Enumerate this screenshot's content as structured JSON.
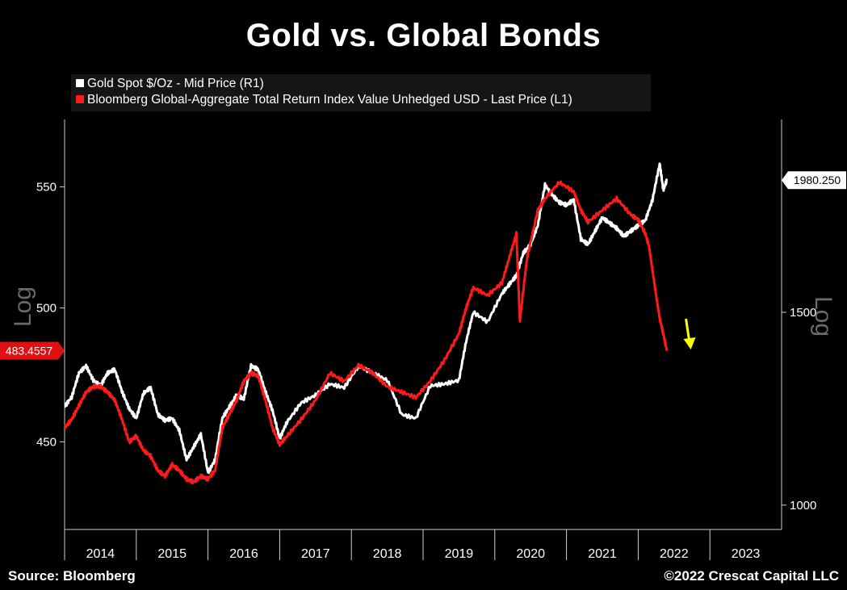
{
  "title": "Gold vs. Global Bonds",
  "footer": {
    "source": "Source: Bloomberg",
    "copyright": "©2022 Crescat Capital LLC"
  },
  "colors": {
    "gold_series": "#ffffff",
    "bond_series": "#ff1a1a",
    "arrow": "#ffff00",
    "background": "#000000",
    "legend_bg": "#151515"
  },
  "icons": {
    "trend_arrow": "yellow-down-arrow-icon"
  },
  "chart_data": {
    "type": "line",
    "title": "Gold vs. Global Bonds",
    "xlabel": "",
    "left_axis": {
      "label": "Log",
      "scale": "log",
      "ticks": [
        450,
        500,
        550
      ],
      "tick_labels": [
        "450",
        "500",
        "550"
      ],
      "range": [
        420,
        580
      ],
      "last_value_label": "483.4557",
      "last_value": 483.4557
    },
    "right_axis": {
      "label": "Log",
      "scale": "log",
      "ticks": [
        1000,
        1500
      ],
      "tick_labels": [
        "1000",
        "1500"
      ],
      "range": [
        950,
        2250
      ],
      "last_value_label": "1980.250",
      "last_value": 1980.25
    },
    "x_axis": {
      "ticks": [
        "2014",
        "2015",
        "2016",
        "2017",
        "2018",
        "2019",
        "2020",
        "2021",
        "2022",
        "2023"
      ],
      "range": [
        2013.9,
        2023.9
      ]
    },
    "grid": false,
    "legend_position": "top-left",
    "series": [
      {
        "name": "Gold Spot $/Oz - Mid Price (R1)",
        "axis": "right",
        "x": [
          2013.9,
          2014.0,
          2014.1,
          2014.2,
          2014.3,
          2014.4,
          2014.5,
          2014.6,
          2014.7,
          2014.8,
          2014.9,
          2015.0,
          2015.1,
          2015.2,
          2015.3,
          2015.4,
          2015.5,
          2015.6,
          2015.7,
          2015.8,
          2015.9,
          2016.0,
          2016.1,
          2016.2,
          2016.3,
          2016.4,
          2016.5,
          2016.6,
          2016.7,
          2016.8,
          2016.9,
          2017.0,
          2017.2,
          2017.4,
          2017.6,
          2017.8,
          2018.0,
          2018.2,
          2018.4,
          2018.6,
          2018.8,
          2019.0,
          2019.2,
          2019.4,
          2019.5,
          2019.6,
          2019.8,
          2020.0,
          2020.1,
          2020.2,
          2020.3,
          2020.4,
          2020.5,
          2020.6,
          2020.7,
          2020.8,
          2020.9,
          2021.0,
          2021.1,
          2021.2,
          2021.3,
          2021.4,
          2021.5,
          2021.6,
          2021.7,
          2021.8,
          2021.9,
          2022.0,
          2022.1,
          2022.2,
          2022.25,
          2022.3
        ],
        "values": [
          1230,
          1255,
          1320,
          1340,
          1300,
          1285,
          1320,
          1330,
          1270,
          1225,
          1200,
          1265,
          1280,
          1210,
          1195,
          1200,
          1170,
          1100,
          1130,
          1160,
          1070,
          1100,
          1200,
          1230,
          1260,
          1250,
          1340,
          1330,
          1270,
          1220,
          1150,
          1190,
          1240,
          1260,
          1290,
          1280,
          1340,
          1320,
          1300,
          1210,
          1200,
          1285,
          1290,
          1300,
          1410,
          1500,
          1470,
          1560,
          1590,
          1620,
          1700,
          1730,
          1800,
          1960,
          1920,
          1890,
          1880,
          1900,
          1750,
          1730,
          1780,
          1830,
          1810,
          1790,
          1760,
          1780,
          1800,
          1820,
          1900,
          2050,
          1940,
          1980
        ]
      },
      {
        "name": "Bloomberg Global-Aggregate Total Return Index Value Unhedged USD - Last Price (L1)",
        "axis": "left",
        "x": [
          2013.9,
          2014.0,
          2014.1,
          2014.2,
          2014.3,
          2014.4,
          2014.5,
          2014.6,
          2014.7,
          2014.8,
          2014.9,
          2015.0,
          2015.1,
          2015.2,
          2015.3,
          2015.4,
          2015.5,
          2015.6,
          2015.7,
          2015.8,
          2015.9,
          2016.0,
          2016.1,
          2016.2,
          2016.3,
          2016.4,
          2016.5,
          2016.6,
          2016.7,
          2016.8,
          2016.9,
          2017.0,
          2017.2,
          2017.4,
          2017.6,
          2017.8,
          2018.0,
          2018.2,
          2018.4,
          2018.6,
          2018.8,
          2019.0,
          2019.2,
          2019.4,
          2019.5,
          2019.6,
          2019.8,
          2020.0,
          2020.1,
          2020.2,
          2020.25,
          2020.35,
          2020.5,
          2020.6,
          2020.8,
          2021.0,
          2021.1,
          2021.2,
          2021.4,
          2021.6,
          2021.8,
          2021.9,
          2022.0,
          2022.05,
          2022.1,
          2022.15,
          2022.2,
          2022.25,
          2022.3
        ],
        "values": [
          455,
          458,
          463,
          468,
          470,
          470,
          468,
          465,
          458,
          450,
          452,
          447,
          445,
          440,
          438,
          442,
          440,
          437,
          436,
          438,
          437,
          440,
          455,
          460,
          465,
          472,
          475,
          474,
          465,
          455,
          449,
          452,
          458,
          465,
          475,
          472,
          478,
          475,
          470,
          468,
          466,
          472,
          480,
          490,
          500,
          508,
          505,
          510,
          520,
          530,
          495,
          520,
          540,
          545,
          552,
          548,
          540,
          535,
          540,
          545,
          538,
          536,
          530,
          525,
          515,
          505,
          496,
          490,
          483.4557
        ]
      }
    ],
    "annotations": [
      {
        "type": "arrow",
        "direction": "down",
        "color": "#ffff00",
        "x": 2022.6
      }
    ]
  }
}
